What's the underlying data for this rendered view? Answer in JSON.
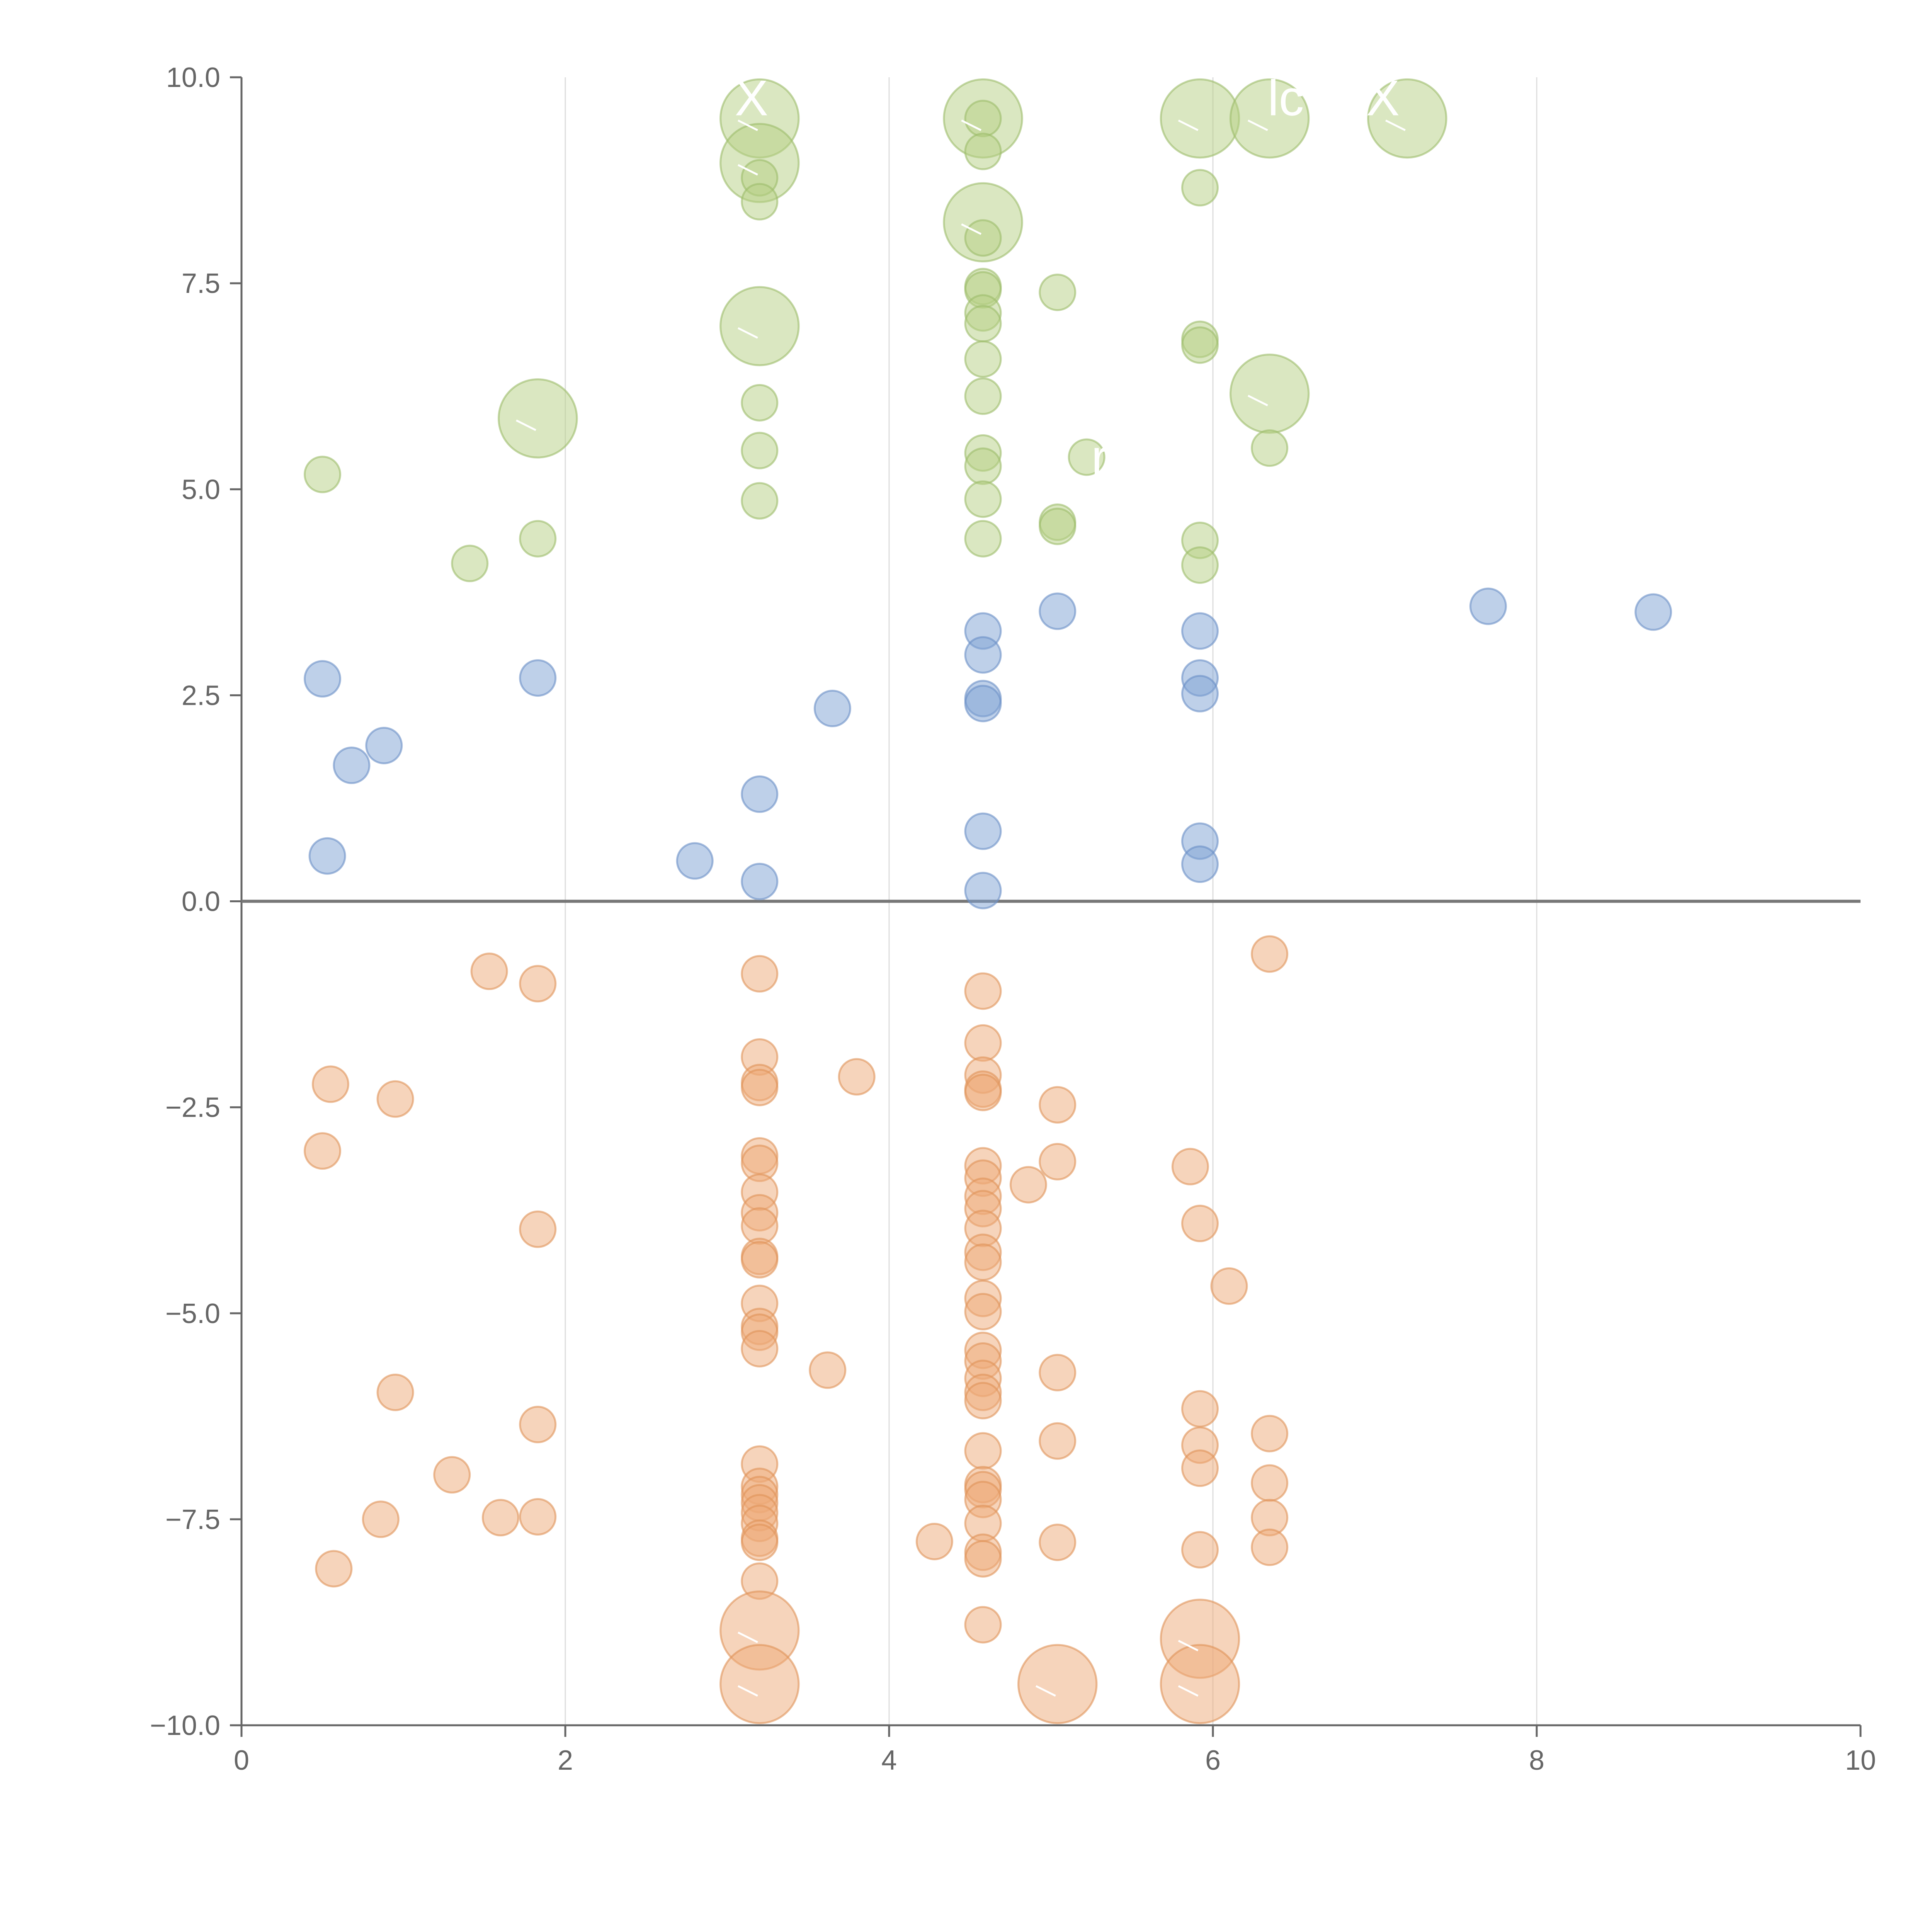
{
  "chart_data": {
    "type": "scatter",
    "title": "",
    "xlabel": "",
    "ylabel": "",
    "xlim": [
      0,
      10
    ],
    "ylim": [
      -10,
      10
    ],
    "x_ticks": [
      "0",
      "2",
      "4",
      "6",
      "8",
      "10"
    ],
    "x_tick_values": [
      0,
      2,
      4,
      6,
      8,
      10
    ],
    "y_ticks": [
      "10.0",
      "7.5",
      "5.0",
      "2.5",
      "0.0",
      "−2.5",
      "−5.0",
      "−7.5",
      "−10.0"
    ],
    "y_tick_values": [
      10,
      7.5,
      5,
      2.5,
      0,
      -2.5,
      -5,
      -7.5,
      -10
    ],
    "x_gridlines": [
      2,
      4,
      6,
      8
    ],
    "zero_line": 0,
    "colors": {
      "blue_fill": "#7ea1d3",
      "blue_stroke": "#6b8fc6",
      "green_fill": "#b5cf83",
      "green_stroke": "#9dbd6a",
      "orange_fill": "#eeaa78",
      "orange_stroke": "#e09258"
    },
    "point_legend": "[x, y, size] where size 1 = small marker, larger values = bigger marker",
    "series": [
      {
        "name": "blue",
        "color": "blue",
        "points": [
          [
            0.5,
            2.7,
            1
          ],
          [
            0.53,
            0.55,
            1
          ],
          [
            0.68,
            1.65,
            1
          ],
          [
            0.88,
            1.89,
            1
          ],
          [
            1.83,
            2.71,
            1
          ],
          [
            2.8,
            0.49,
            1
          ],
          [
            3.2,
            1.3,
            1
          ],
          [
            3.2,
            0.24,
            1
          ],
          [
            3.65,
            2.34,
            1
          ],
          [
            4.58,
            3.28,
            1
          ],
          [
            4.58,
            2.99,
            1
          ],
          [
            4.58,
            2.46,
            1
          ],
          [
            4.58,
            2.4,
            1
          ],
          [
            4.58,
            0.85,
            1
          ],
          [
            4.58,
            0.13,
            1
          ],
          [
            5.04,
            3.52,
            1
          ],
          [
            5.92,
            3.28,
            1
          ],
          [
            5.92,
            2.71,
            1
          ],
          [
            5.92,
            2.52,
            1
          ],
          [
            5.92,
            0.73,
            1
          ],
          [
            5.92,
            0.45,
            1
          ],
          [
            7.7,
            3.58,
            1
          ],
          [
            8.72,
            3.51,
            1
          ]
        ]
      },
      {
        "name": "green",
        "color": "green",
        "points": [
          [
            0.5,
            5.18,
            1
          ],
          [
            1.41,
            4.1,
            1
          ],
          [
            1.83,
            4.4,
            1
          ],
          [
            1.83,
            5.86,
            2.2
          ],
          [
            3.2,
            9.5,
            2.2
          ],
          [
            3.2,
            8.96,
            2.2
          ],
          [
            3.2,
            8.78,
            1
          ],
          [
            3.2,
            8.49,
            1
          ],
          [
            3.2,
            6.98,
            2.2
          ],
          [
            3.2,
            6.05,
            1
          ],
          [
            3.2,
            5.47,
            1
          ],
          [
            3.2,
            4.86,
            1
          ],
          [
            4.58,
            9.5,
            2.2
          ],
          [
            4.58,
            9.5,
            1
          ],
          [
            4.58,
            9.1,
            1
          ],
          [
            4.58,
            8.24,
            2.2
          ],
          [
            4.58,
            8.05,
            1
          ],
          [
            4.58,
            7.46,
            1
          ],
          [
            4.58,
            7.42,
            1
          ],
          [
            4.58,
            7.14,
            1
          ],
          [
            4.58,
            7.01,
            1
          ],
          [
            4.58,
            6.58,
            1
          ],
          [
            4.58,
            6.13,
            1
          ],
          [
            4.58,
            5.44,
            1
          ],
          [
            4.58,
            5.28,
            1
          ],
          [
            4.58,
            4.88,
            1
          ],
          [
            4.58,
            4.4,
            1
          ],
          [
            5.04,
            7.39,
            1
          ],
          [
            5.04,
            4.6,
            1
          ],
          [
            5.04,
            4.55,
            1
          ],
          [
            5.22,
            5.39,
            1
          ],
          [
            5.92,
            9.5,
            2.2
          ],
          [
            5.92,
            8.66,
            1
          ],
          [
            5.92,
            6.82,
            1
          ],
          [
            5.92,
            6.75,
            1
          ],
          [
            5.92,
            4.38,
            1
          ],
          [
            5.92,
            4.08,
            1
          ],
          [
            6.35,
            9.5,
            2.2
          ],
          [
            6.35,
            6.16,
            2.2
          ],
          [
            6.35,
            5.5,
            1
          ],
          [
            7.2,
            9.5,
            2.2
          ]
        ]
      },
      {
        "name": "orange",
        "color": "orange",
        "points": [
          [
            0.5,
            -3.03,
            1
          ],
          [
            0.55,
            -2.22,
            1
          ],
          [
            0.57,
            -8.1,
            1
          ],
          [
            0.86,
            -7.5,
            1
          ],
          [
            0.95,
            -2.4,
            1
          ],
          [
            0.95,
            -5.96,
            1
          ],
          [
            1.3,
            -6.96,
            1
          ],
          [
            1.53,
            -0.85,
            1
          ],
          [
            1.6,
            -7.48,
            1
          ],
          [
            1.83,
            -1.0,
            1
          ],
          [
            1.83,
            -3.98,
            1
          ],
          [
            1.83,
            -6.35,
            1
          ],
          [
            1.83,
            -7.47,
            1
          ],
          [
            3.2,
            -0.88,
            1
          ],
          [
            3.2,
            -1.89,
            1
          ],
          [
            3.2,
            -2.2,
            1
          ],
          [
            3.2,
            -2.26,
            1
          ],
          [
            3.2,
            -3.09,
            1
          ],
          [
            3.2,
            -3.18,
            1
          ],
          [
            3.2,
            -3.53,
            1
          ],
          [
            3.2,
            -3.78,
            1
          ],
          [
            3.2,
            -3.94,
            1
          ],
          [
            3.2,
            -4.31,
            1
          ],
          [
            3.2,
            -4.35,
            1
          ],
          [
            3.2,
            -4.88,
            1
          ],
          [
            3.2,
            -5.16,
            1
          ],
          [
            3.2,
            -5.23,
            1
          ],
          [
            3.2,
            -5.43,
            1
          ],
          [
            3.2,
            -6.83,
            1
          ],
          [
            3.2,
            -7.1,
            1
          ],
          [
            3.2,
            -7.2,
            1
          ],
          [
            3.2,
            -7.3,
            1
          ],
          [
            3.2,
            -7.42,
            1
          ],
          [
            3.2,
            -7.55,
            1
          ],
          [
            3.2,
            -7.73,
            1
          ],
          [
            3.2,
            -7.78,
            1
          ],
          [
            3.2,
            -8.25,
            1
          ],
          [
            3.2,
            -8.85,
            2.2
          ],
          [
            3.2,
            -9.5,
            2.2
          ],
          [
            3.62,
            -5.69,
            1
          ],
          [
            3.8,
            -2.13,
            1
          ],
          [
            4.28,
            -7.77,
            1
          ],
          [
            4.58,
            -1.09,
            1
          ],
          [
            4.58,
            -1.72,
            1
          ],
          [
            4.58,
            -2.11,
            1
          ],
          [
            4.58,
            -2.28,
            1
          ],
          [
            4.58,
            -2.32,
            1
          ],
          [
            4.58,
            -3.21,
            1
          ],
          [
            4.58,
            -3.36,
            1
          ],
          [
            4.58,
            -3.58,
            1
          ],
          [
            4.58,
            -3.73,
            1
          ],
          [
            4.58,
            -3.97,
            1
          ],
          [
            4.58,
            -4.26,
            1
          ],
          [
            4.58,
            -4.38,
            1
          ],
          [
            4.58,
            -4.82,
            1
          ],
          [
            4.58,
            -4.98,
            1
          ],
          [
            4.58,
            -5.45,
            1
          ],
          [
            4.58,
            -5.58,
            1
          ],
          [
            4.58,
            -5.79,
            1
          ],
          [
            4.58,
            -5.96,
            1
          ],
          [
            4.58,
            -6.06,
            1
          ],
          [
            4.58,
            -6.67,
            1
          ],
          [
            4.58,
            -7.08,
            1
          ],
          [
            4.58,
            -7.14,
            1
          ],
          [
            4.58,
            -7.26,
            1
          ],
          [
            4.58,
            -7.55,
            1
          ],
          [
            4.58,
            -7.9,
            1
          ],
          [
            4.58,
            -7.98,
            1
          ],
          [
            4.58,
            -8.78,
            1
          ],
          [
            4.86,
            -3.44,
            1
          ],
          [
            5.04,
            -2.47,
            1
          ],
          [
            5.04,
            -3.16,
            1
          ],
          [
            5.04,
            -5.72,
            1
          ],
          [
            5.04,
            -6.55,
            1
          ],
          [
            5.04,
            -7.78,
            1
          ],
          [
            5.04,
            -9.5,
            2.2
          ],
          [
            5.86,
            -3.22,
            1
          ],
          [
            5.92,
            -3.91,
            1
          ],
          [
            5.92,
            -6.16,
            1
          ],
          [
            5.92,
            -6.6,
            1
          ],
          [
            5.92,
            -6.88,
            1
          ],
          [
            5.92,
            -7.87,
            1
          ],
          [
            5.92,
            -8.95,
            2.2
          ],
          [
            5.92,
            -9.5,
            2.2
          ],
          [
            6.1,
            -4.67,
            1
          ],
          [
            6.35,
            -0.64,
            1
          ],
          [
            6.35,
            -6.46,
            1
          ],
          [
            6.35,
            -7.06,
            1
          ],
          [
            6.35,
            -7.48,
            1
          ],
          [
            6.35,
            -7.84,
            1
          ]
        ]
      }
    ],
    "annotations": [
      {
        "text": "X",
        "x": 3.15,
        "y": 9.75
      },
      {
        "text": "lc",
        "x": 6.45,
        "y": 9.75
      },
      {
        "text": "X",
        "x": 7.05,
        "y": 9.75
      },
      {
        "text": "r",
        "x": 5.3,
        "y": 5.39
      }
    ]
  }
}
